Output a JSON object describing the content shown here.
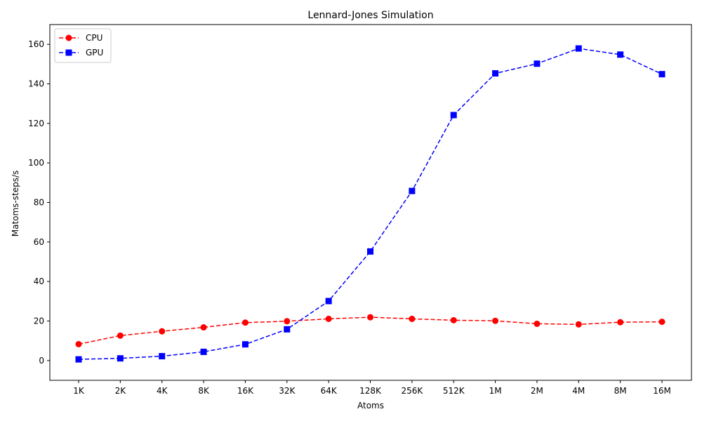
{
  "chart_data": {
    "type": "line",
    "title": "Lennard-Jones Simulation",
    "xlabel": "Atoms",
    "ylabel": "Matoms-steps/s",
    "categories": [
      "1K",
      "2K",
      "4K",
      "8K",
      "16K",
      "32K",
      "64K",
      "128K",
      "256K",
      "512K",
      "1M",
      "2M",
      "4M",
      "8M",
      "16M"
    ],
    "ylim": [
      -10,
      170
    ],
    "yticks": [
      0,
      20,
      40,
      60,
      80,
      100,
      120,
      140,
      160
    ],
    "legend_position": "top-left",
    "series": [
      {
        "name": "CPU",
        "color": "#ff0000",
        "marker": "circle",
        "linestyle": "dashed",
        "values": [
          8.3,
          12.6,
          14.8,
          16.8,
          19.2,
          19.9,
          21.1,
          21.9,
          21.1,
          20.4,
          20.1,
          18.6,
          18.3,
          19.4,
          19.6
        ]
      },
      {
        "name": "GPU",
        "color": "#0000ff",
        "marker": "square",
        "linestyle": "dashed",
        "values": [
          0.6,
          1.1,
          2.2,
          4.4,
          8.2,
          15.8,
          30.1,
          55.2,
          85.8,
          124.2,
          145.3,
          150.2,
          157.9,
          154.8,
          144.9
        ]
      }
    ]
  }
}
